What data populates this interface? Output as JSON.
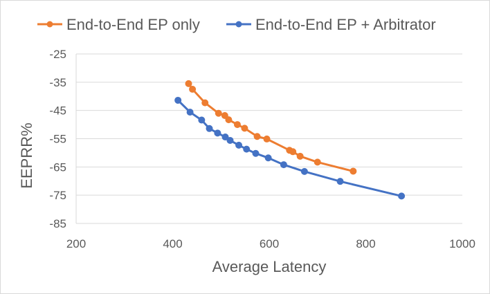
{
  "chart_data": {
    "type": "line",
    "title": "",
    "xlabel": "Average Latency",
    "ylabel": "EEPRR%",
    "xlim": [
      200,
      1000
    ],
    "ylim": [
      -85,
      -25
    ],
    "xticks": [
      200,
      400,
      600,
      800,
      1000
    ],
    "yticks": [
      -25,
      -35,
      -45,
      -55,
      -65,
      -75,
      -85
    ],
    "grid": "horizontal",
    "legend_position": "top",
    "series": [
      {
        "name": "End-to-End EP only",
        "color": "#ED7D31",
        "x": [
          433,
          441,
          467,
          495,
          508,
          516,
          534,
          549,
          575,
          595,
          642,
          649,
          664,
          700,
          774
        ],
        "y": [
          -35.5,
          -37.5,
          -42.3,
          -46.0,
          -46.8,
          -48.3,
          -50.0,
          -51.3,
          -54.2,
          -55.1,
          -59.1,
          -59.6,
          -61.2,
          -63.3,
          -66.5
        ]
      },
      {
        "name": "End-to-End EP + Arbitrator",
        "color": "#4472C4",
        "x": [
          411,
          436,
          460,
          476,
          493,
          509,
          519,
          537,
          553,
          572,
          598,
          630,
          673,
          747,
          874
        ],
        "y": [
          -41.4,
          -45.6,
          -48.4,
          -51.4,
          -53.0,
          -54.4,
          -55.6,
          -57.3,
          -58.7,
          -60.2,
          -61.8,
          -64.2,
          -66.6,
          -70.1,
          -75.3
        ]
      }
    ]
  }
}
